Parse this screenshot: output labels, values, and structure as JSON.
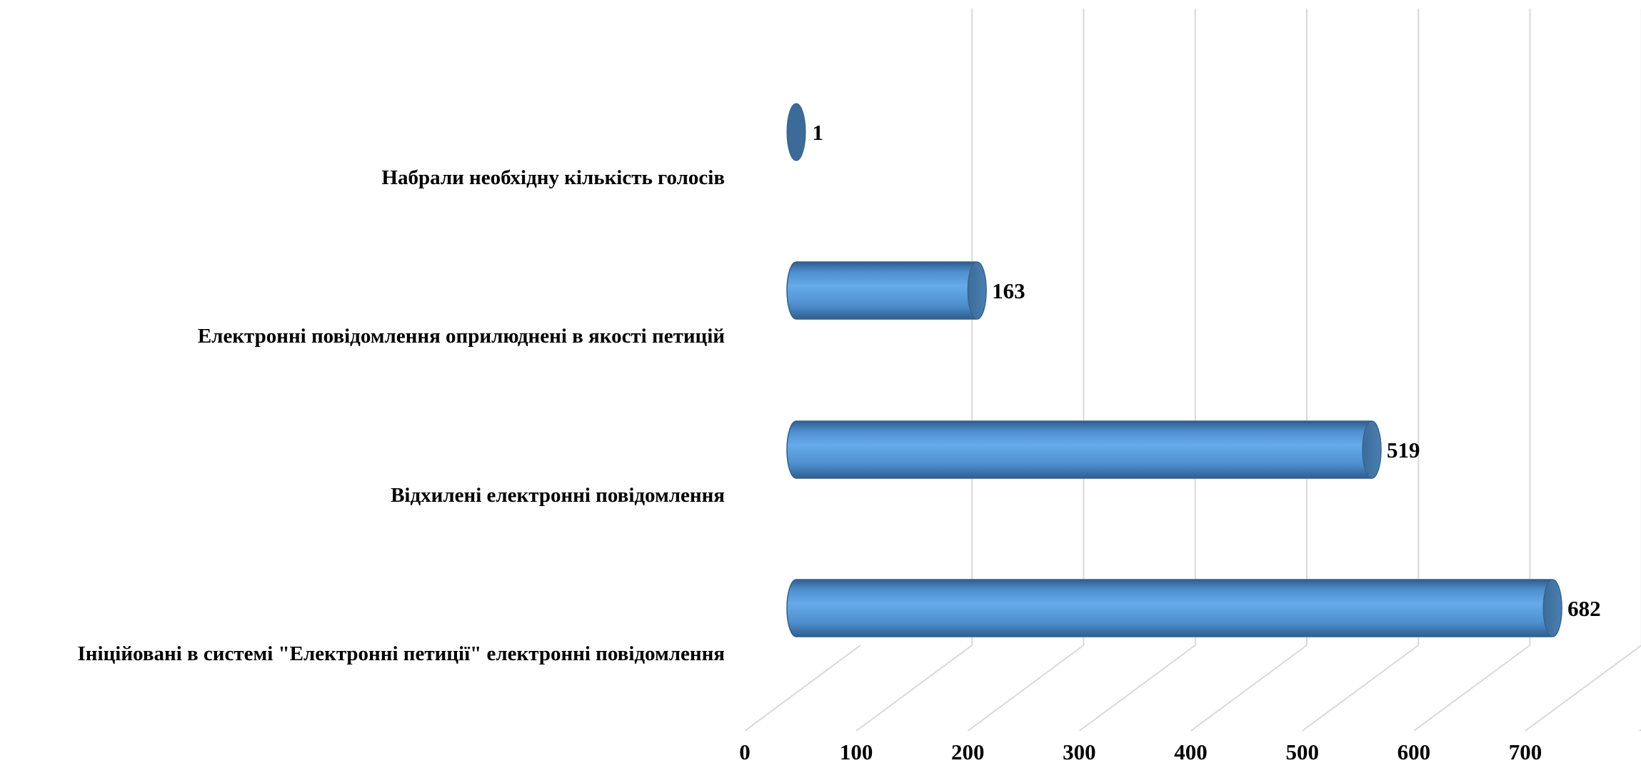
{
  "chart_data": {
    "type": "bar",
    "orientation": "horizontal",
    "style": "3d-cylinder",
    "categories": [
      "Набрали необхідну кількість голосів",
      "Електронні повідомлення оприлюднені в якості петицій",
      "Відхилені електронні повідомлення",
      "Ініційовані в системі \"Електронні петиції\" електронні повідомлення"
    ],
    "values": [
      1,
      163,
      519,
      682
    ],
    "data_labels": [
      "1",
      "163",
      "519",
      "682"
    ],
    "xlim": [
      0,
      700
    ],
    "x_ticks": [
      "0",
      "100",
      "200",
      "300",
      "400",
      "500",
      "600",
      "700"
    ],
    "title": "",
    "xlabel": "",
    "ylabel": "",
    "grid": true,
    "legend": "none",
    "colors": {
      "bar_light": "#66aaea",
      "bar_mid": "#4f8fcf",
      "bar_dark": "#2f5f8e",
      "bar_cap": "#3b6c99",
      "grid": "#d9d9d9"
    }
  }
}
